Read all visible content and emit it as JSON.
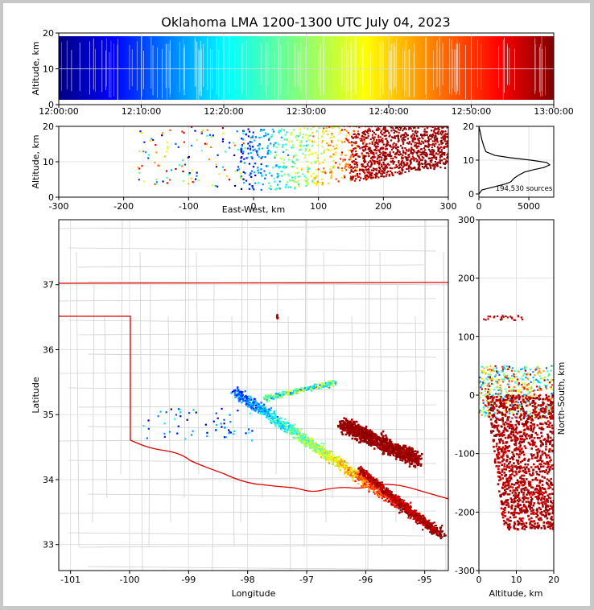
{
  "figure": {
    "title": "Oklahoma LMA 1200-1300 UTC July 04, 2023",
    "source_count": "194,530 sources"
  },
  "chart_data": [
    {
      "name": "time-height",
      "type": "scatter",
      "title": "Oklahoma LMA 1200-1300 UTC July 04, 2023",
      "xlabel": "",
      "ylabel": "Altitude, km",
      "xlim": [
        "12:00:00",
        "13:00:00"
      ],
      "ylim": [
        0,
        20
      ],
      "x_ticks": [
        "12:00:00",
        "12:10:00",
        "12:20:00",
        "12:30:00",
        "12:40:00",
        "12:50:00",
        "13:00:00"
      ],
      "y_ticks": [
        "0",
        "10",
        "20"
      ],
      "color_by": "time",
      "colormap": "jet",
      "grid": true
    },
    {
      "name": "east-west-altitude",
      "type": "scatter",
      "xlabel": "East-West, km",
      "ylabel": "Altitude, km",
      "xlim": [
        -300,
        300
      ],
      "ylim": [
        0,
        20
      ],
      "x_ticks": [
        "-300",
        "-200",
        "-100",
        "0",
        "100",
        "200",
        "300"
      ],
      "y_ticks": [
        "0",
        "10",
        "20"
      ],
      "grid": true
    },
    {
      "name": "altitude-histogram",
      "type": "line",
      "xlabel": "",
      "ylabel": "",
      "xlim": [
        0,
        7500
      ],
      "ylim": [
        0,
        20
      ],
      "x_ticks": [
        "0",
        "5000"
      ],
      "y_ticks": [
        "0",
        "10",
        "20"
      ],
      "annotation": "194,530 sources",
      "x": [
        0,
        300,
        1800,
        2700,
        3200,
        3500,
        4000,
        4600,
        5500,
        6500,
        7100,
        6800,
        5200,
        3200,
        1600,
        700,
        500,
        300,
        150,
        0
      ],
      "y": [
        0,
        1.2,
        2.3,
        3.0,
        3.6,
        4.6,
        5.6,
        6.5,
        7.2,
        7.8,
        8.6,
        9.3,
        10.0,
        10.7,
        11.4,
        12.5,
        14,
        16,
        18,
        20
      ],
      "grid": true
    },
    {
      "name": "plan-view-map",
      "type": "scatter",
      "xlabel": "Longitude",
      "ylabel": "Latitude",
      "xlim": [
        -101.2,
        -94.6
      ],
      "ylim": [
        32.6,
        38.0
      ],
      "x_ticks": [
        "-101",
        "-100",
        "-99",
        "-98",
        "-97",
        "-96",
        "-95"
      ],
      "y_ticks": [
        "33",
        "34",
        "35",
        "36",
        "37"
      ],
      "grid": true
    },
    {
      "name": "altitude-north-south",
      "type": "scatter",
      "xlabel": "Altitude, km",
      "ylabel": "North-South, km",
      "xlim": [
        0,
        20
      ],
      "ylim": [
        -300,
        300
      ],
      "x_ticks": [
        "0",
        "10",
        "20"
      ],
      "y_ticks": [
        "300",
        "200",
        "100",
        "0",
        "-100",
        "-200",
        "-300"
      ],
      "grid": true
    }
  ],
  "colors": {
    "state_border": "#e00000",
    "county_lines": "#c8c8c8",
    "frame_background": "#c8c8c8"
  }
}
